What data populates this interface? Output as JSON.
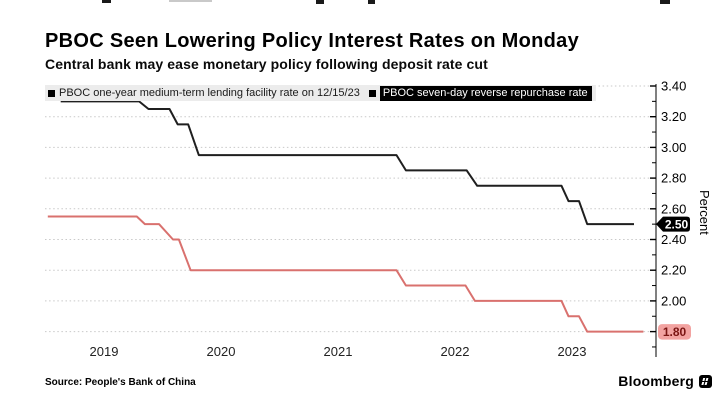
{
  "header": {
    "title": "PBOC Seen Lowering Policy Interest Rates on Monday",
    "subtitle": "Central bank may ease monetary policy following deposit rate cut"
  },
  "legend": {
    "items": [
      {
        "label": "PBOC one-year medium-term lending facility rate on 12/15/23",
        "marker_color": "#000000",
        "highlighted": false
      },
      {
        "label": "PBOC seven-day reverse repurchase rate",
        "marker_color": "#000000",
        "highlighted": true
      }
    ]
  },
  "chart_data": {
    "type": "line",
    "style": "step",
    "title": "PBOC Seen Lowering Policy Interest Rates on Monday",
    "subtitle": "Central bank may ease monetary policy following deposit rate cut",
    "grid": "horizontal-dotted",
    "x_axis": {
      "labels": [
        "2019",
        "2020",
        "2021",
        "2022",
        "2023"
      ],
      "start_year": 2019,
      "end_year": 2024.22
    },
    "y_axis": {
      "title": "Percent",
      "side": "right",
      "min": 1.7,
      "max": 3.42,
      "gridline_values": [
        3.4,
        3.2,
        3.0,
        2.8,
        2.6,
        2.4,
        2.2,
        2.0,
        1.8
      ],
      "major_tick_labels": [
        "3.40",
        "3.20",
        "3.00",
        "2.80",
        "2.60",
        "2.40",
        "2.20",
        "2.00"
      ],
      "minor_tick_step": 0.1
    },
    "series": [
      {
        "name": "PBOC one-year medium-term lending facility rate on 12/15/23",
        "color": "#1f1f1f",
        "last_value_label": "2.50",
        "badge": {
          "bg": "#000000",
          "text_color": "#ffffff",
          "shape": "pointed-tag"
        },
        "points": [
          [
            2019.13,
            3.3
          ],
          [
            2019.8,
            3.3
          ],
          [
            2019.88,
            3.25
          ],
          [
            2020.06,
            3.25
          ],
          [
            2020.13,
            3.15
          ],
          [
            2020.22,
            3.15
          ],
          [
            2020.31,
            2.95
          ],
          [
            2022.0,
            2.95
          ],
          [
            2022.08,
            2.85
          ],
          [
            2022.6,
            2.85
          ],
          [
            2022.69,
            2.75
          ],
          [
            2023.41,
            2.75
          ],
          [
            2023.47,
            2.65
          ],
          [
            2023.56,
            2.65
          ],
          [
            2023.63,
            2.5
          ],
          [
            2024.03,
            2.5
          ]
        ]
      },
      {
        "name": "PBOC seven-day reverse repurchase rate",
        "color": "#d9716e",
        "last_value_label": "1.80",
        "badge": {
          "bg": "#f2a3a1",
          "text_color": "#7a1513",
          "shape": "rounded-rect"
        },
        "points": [
          [
            2019.02,
            2.55
          ],
          [
            2019.78,
            2.55
          ],
          [
            2019.85,
            2.5
          ],
          [
            2019.97,
            2.5
          ],
          [
            2020.09,
            2.4
          ],
          [
            2020.14,
            2.4
          ],
          [
            2020.24,
            2.2
          ],
          [
            2022.0,
            2.2
          ],
          [
            2022.08,
            2.1
          ],
          [
            2022.59,
            2.1
          ],
          [
            2022.67,
            2.0
          ],
          [
            2023.41,
            2.0
          ],
          [
            2023.47,
            1.9
          ],
          [
            2023.56,
            1.9
          ],
          [
            2023.63,
            1.8
          ],
          [
            2024.11,
            1.8
          ]
        ]
      }
    ]
  },
  "footer": {
    "source": "Source: People's Bank of China",
    "brand": "Bloomberg"
  }
}
